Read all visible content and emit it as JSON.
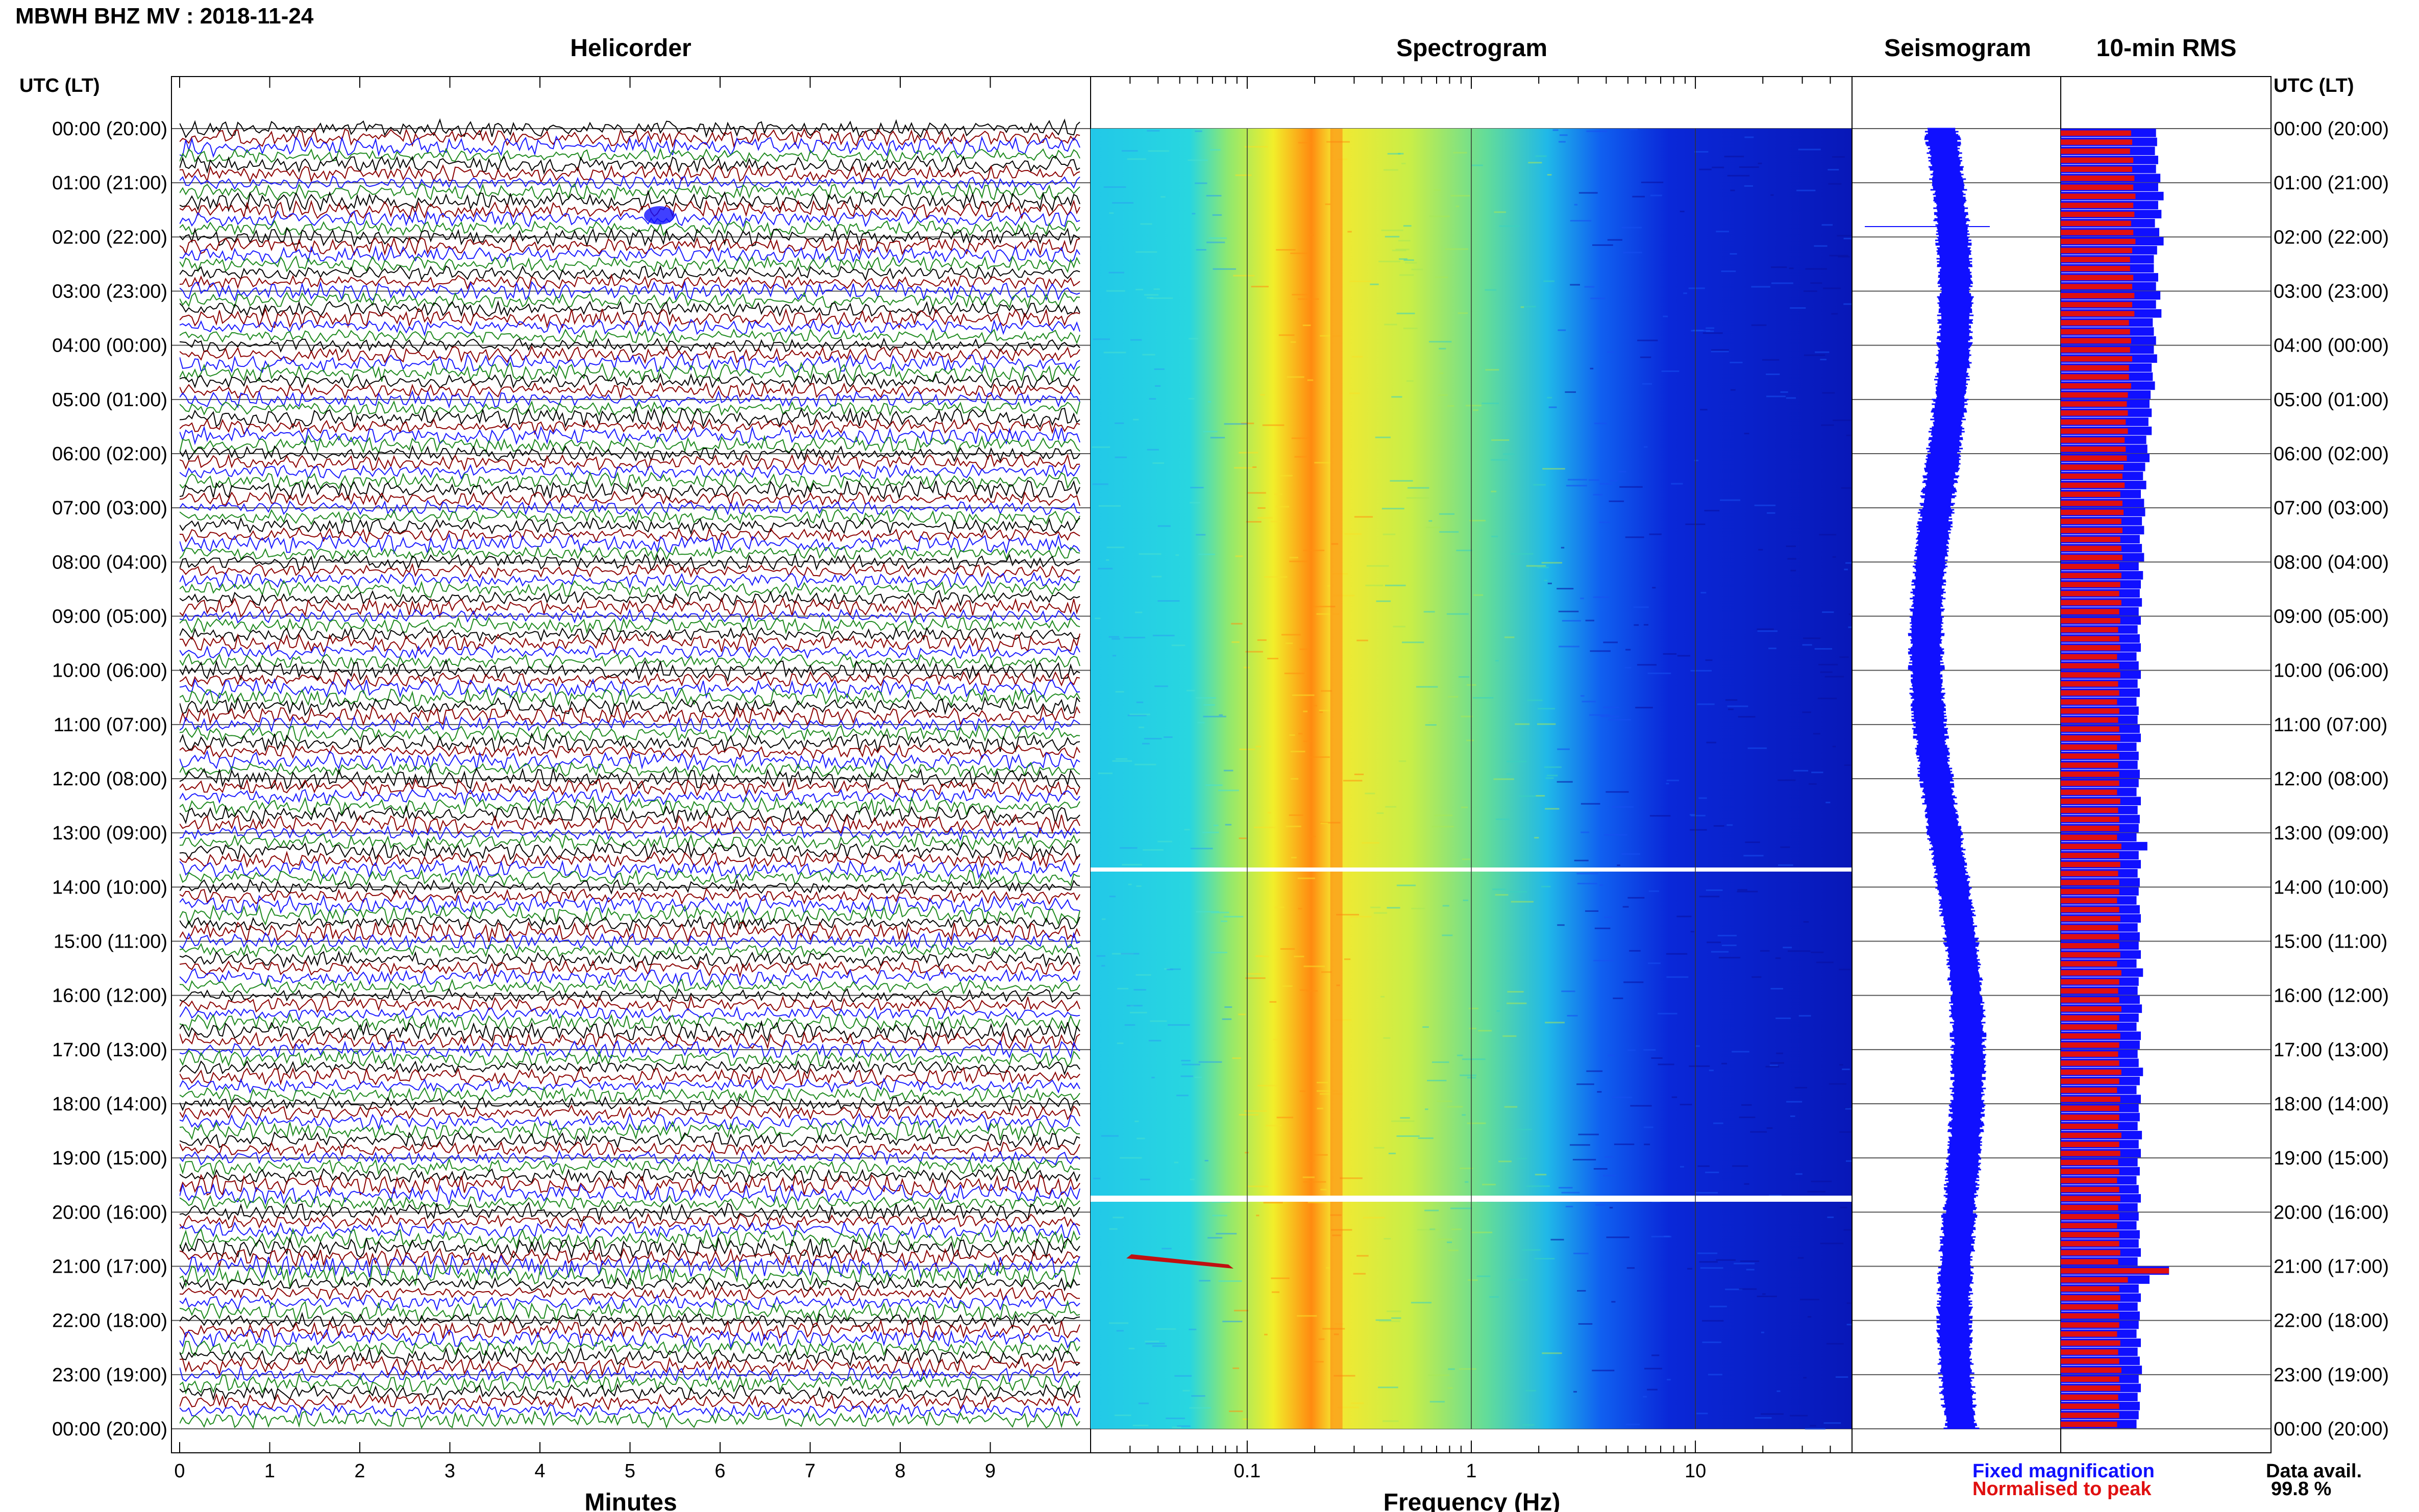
{
  "figure_title": "MBWH BHZ MV : 2018-11-24",
  "panels": {
    "helicorder": "Helicorder",
    "spectrogram": "Spectrogram",
    "seismogram": "Seismogram",
    "rms": "10-min RMS"
  },
  "time_axis_label": "UTC (LT)",
  "legend": {
    "fixed": "Fixed magnification",
    "normalised": "Normalised to peak",
    "avail_label": "Data avail.",
    "avail_value": "99.8 %"
  },
  "colors": {
    "helicorder_traces": [
      "#000000",
      "#8b0000",
      "#1a1aff",
      "#1f8a1f"
    ],
    "rms_fixed": "#1010ff",
    "rms_normalised": "#e01010",
    "seismogram_trace": "#1010ff",
    "spectrogram_colormap": "jet"
  },
  "chart_data": [
    {
      "type": "line",
      "title": "Helicorder",
      "xlabel": "Minutes",
      "x_ticks": [
        "0",
        "1",
        "2",
        "3",
        "4",
        "5",
        "6",
        "7",
        "8",
        "9"
      ],
      "xlim": [
        0,
        10
      ],
      "y_ticks": [
        "00:00 (20:00)",
        "01:00 (21:00)",
        "02:00 (22:00)",
        "03:00 (23:00)",
        "04:00 (00:00)",
        "05:00 (01:00)",
        "06:00 (02:00)",
        "07:00 (03:00)",
        "08:00 (04:00)",
        "09:00 (05:00)",
        "10:00 (06:00)",
        "11:00 (07:00)",
        "12:00 (08:00)",
        "13:00 (09:00)",
        "14:00 (10:00)",
        "15:00 (11:00)",
        "16:00 (12:00)",
        "17:00 (13:00)",
        "18:00 (14:00)",
        "19:00 (15:00)",
        "20:00 (16:00)",
        "21:00 (17:00)",
        "22:00 (18:00)",
        "23:00 (19:00)",
        "00:00 (20:00)"
      ],
      "rows": 144,
      "row_minutes": 10
    },
    {
      "type": "heatmap",
      "title": "Spectrogram",
      "xlabel": "Frequency (Hz)",
      "x_scale": "log",
      "x_ticks": [
        "0.1",
        "1",
        "10"
      ],
      "xlim": [
        0.02,
        50
      ],
      "peak_frequency_hz": 0.25
    },
    {
      "type": "line",
      "title": "Seismogram"
    },
    {
      "type": "bar",
      "title": "10-min RMS",
      "series": [
        {
          "name": "Fixed magnification",
          "relative_values_note": "per 10-min window"
        },
        {
          "name": "Normalised to peak"
        }
      ],
      "fixed_relative_values": [
        0.88,
        0.89,
        0.87,
        0.9,
        0.88,
        0.92,
        0.9,
        0.95,
        0.9,
        0.93,
        0.87,
        0.91,
        0.95,
        0.89,
        0.86,
        0.86,
        0.9,
        0.88,
        0.92,
        0.88,
        0.93,
        0.85,
        0.86,
        0.88,
        0.86,
        0.89,
        0.84,
        0.85,
        0.87,
        0.83,
        0.82,
        0.84,
        0.81,
        0.84,
        0.79,
        0.8,
        0.82,
        0.78,
        0.76,
        0.79,
        0.74,
        0.77,
        0.78,
        0.75,
        0.77,
        0.73,
        0.75,
        0.77,
        0.72,
        0.76,
        0.74,
        0.73,
        0.75,
        0.72,
        0.74,
        0.71,
        0.73,
        0.74,
        0.7,
        0.72,
        0.74,
        0.71,
        0.73,
        0.7,
        0.72,
        0.71,
        0.73,
        0.74,
        0.7,
        0.72,
        0.71,
        0.73,
        0.72,
        0.7,
        0.74,
        0.71,
        0.73,
        0.72,
        0.7,
        0.8,
        0.72,
        0.74,
        0.71,
        0.73,
        0.72,
        0.7,
        0.73,
        0.74,
        0.71,
        0.73,
        0.72,
        0.74,
        0.7,
        0.76,
        0.72,
        0.71,
        0.73,
        0.75,
        0.72,
        0.7,
        0.74,
        0.73,
        0.71,
        0.72,
        0.76,
        0.73,
        0.7,
        0.74,
        0.72,
        0.73,
        0.71,
        0.75,
        0.72,
        0.74,
        0.71,
        0.73,
        0.7,
        0.72,
        0.74,
        0.71,
        0.72,
        0.7,
        0.73,
        0.72,
        0.74,
        0.71,
        1.0,
        0.82,
        0.72,
        0.74,
        0.71,
        0.73,
        0.72,
        0.7,
        0.74,
        0.71,
        0.73,
        0.75,
        0.72,
        0.74,
        0.71,
        0.73,
        0.72,
        0.7
      ],
      "normalised_relative_values": [
        0.65,
        0.66,
        0.64,
        0.67,
        0.66,
        0.68,
        0.67,
        0.69,
        0.67,
        0.68,
        0.65,
        0.67,
        0.69,
        0.66,
        0.64,
        0.64,
        0.67,
        0.66,
        0.68,
        0.66,
        0.68,
        0.63,
        0.64,
        0.65,
        0.64,
        0.66,
        0.63,
        0.63,
        0.65,
        0.62,
        0.61,
        0.62,
        0.6,
        0.62,
        0.59,
        0.6,
        0.61,
        0.58,
        0.57,
        0.59,
        0.55,
        0.57,
        0.58,
        0.56,
        0.57,
        0.55,
        0.56,
        0.57,
        0.54,
        0.56,
        0.55,
        0.54,
        0.56,
        0.54,
        0.55,
        0.53,
        0.54,
        0.55,
        0.52,
        0.54,
        0.55,
        0.53,
        0.54,
        0.52,
        0.54,
        0.53,
        0.54,
        0.55,
        0.52,
        0.54,
        0.53,
        0.54,
        0.54,
        0.52,
        0.55,
        0.53,
        0.54,
        0.54,
        0.52,
        0.56,
        0.54,
        0.55,
        0.53,
        0.54,
        0.54,
        0.52,
        0.54,
        0.55,
        0.53,
        0.54,
        0.54,
        0.55,
        0.52,
        0.56,
        0.54,
        0.53,
        0.54,
        0.56,
        0.54,
        0.52,
        0.55,
        0.54,
        0.53,
        0.54,
        0.56,
        0.54,
        0.52,
        0.55,
        0.54,
        0.54,
        0.53,
        0.56,
        0.54,
        0.55,
        0.53,
        0.54,
        0.52,
        0.54,
        0.55,
        0.53,
        0.54,
        0.52,
        0.54,
        0.54,
        0.55,
        0.53,
        1.0,
        0.62,
        0.54,
        0.55,
        0.53,
        0.54,
        0.54,
        0.52,
        0.55,
        0.53,
        0.54,
        0.56,
        0.54,
        0.55,
        0.53,
        0.54,
        0.54,
        0.52
      ]
    }
  ]
}
